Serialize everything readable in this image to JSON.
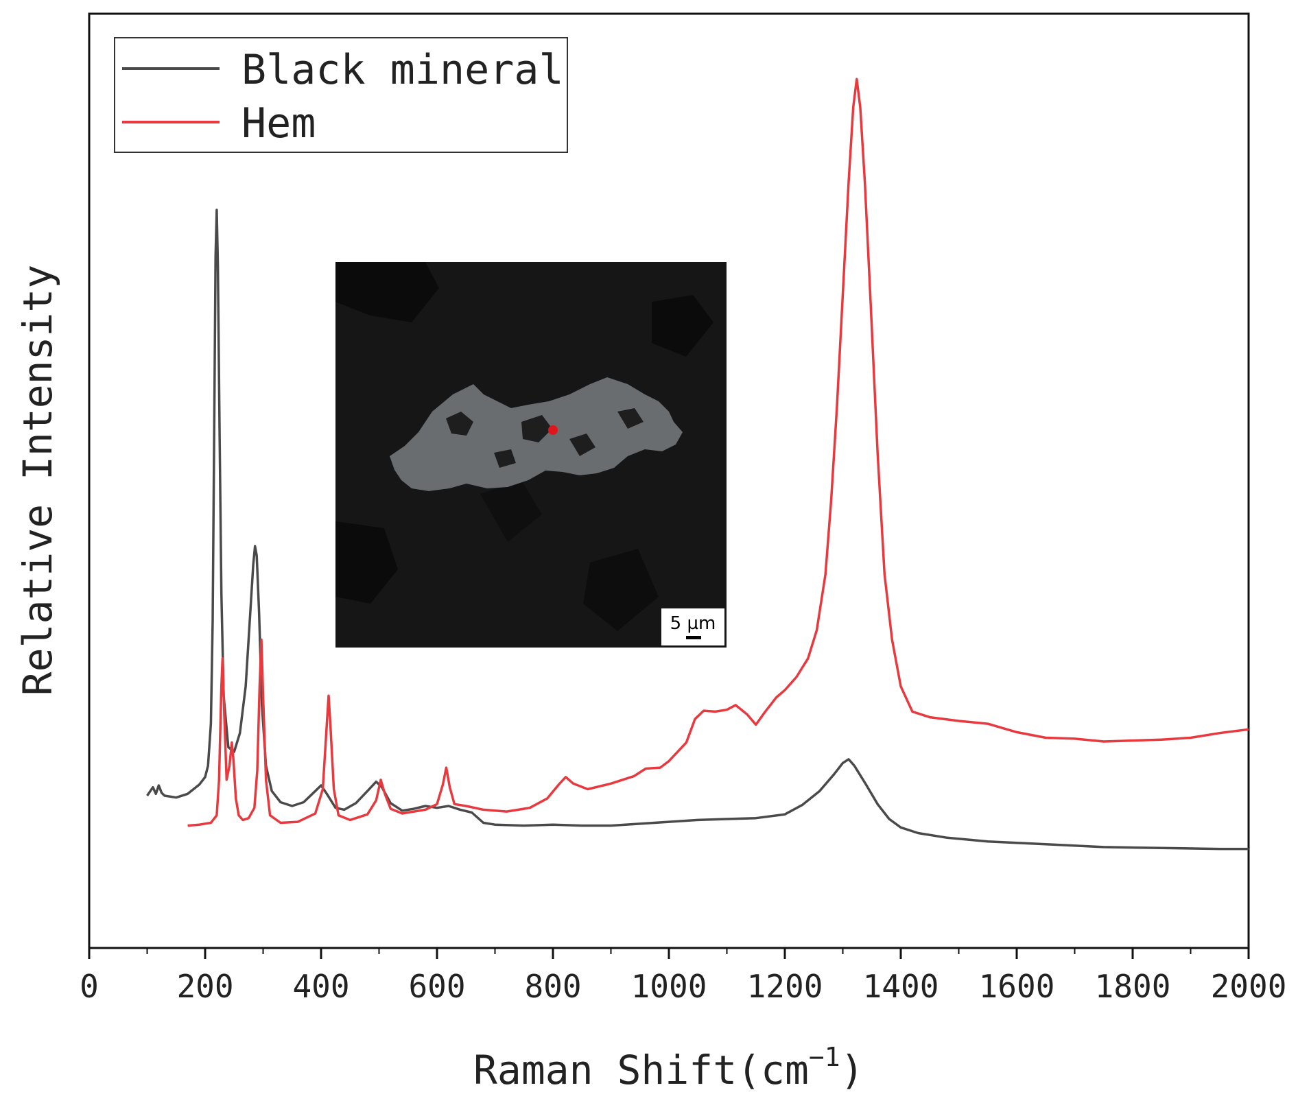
{
  "chart_data": {
    "type": "line",
    "xlabel": "Raman Shift(cm",
    "xlabel_superscript": "−1",
    "xlabel_suffix": ")",
    "ylabel": "Relative Intensity",
    "xlim": [
      0,
      2000
    ],
    "ylim": [
      0,
      100
    ],
    "xticks": [
      "0",
      "200",
      "400",
      "600",
      "800",
      "1000",
      "1200",
      "1400",
      "1600",
      "1800",
      "2000"
    ],
    "yticks_shown": false,
    "grid": false,
    "legend_position": "top-left",
    "series": [
      {
        "name": "Black mineral",
        "color": "#4a4a4a",
        "points": [
          [
            100,
            16.3
          ],
          [
            110,
            17.2
          ],
          [
            115,
            16.5
          ],
          [
            120,
            17.4
          ],
          [
            125,
            16.6
          ],
          [
            130,
            16.3
          ],
          [
            150,
            16.1
          ],
          [
            170,
            16.5
          ],
          [
            190,
            17.5
          ],
          [
            200,
            18.3
          ],
          [
            205,
            19.5
          ],
          [
            210,
            24
          ],
          [
            213,
            35
          ],
          [
            216,
            58
          ],
          [
            218,
            74
          ],
          [
            220,
            79
          ],
          [
            222,
            73
          ],
          [
            225,
            55
          ],
          [
            228,
            38
          ],
          [
            232,
            27
          ],
          [
            240,
            21.5
          ],
          [
            250,
            21
          ],
          [
            260,
            23
          ],
          [
            270,
            28
          ],
          [
            278,
            36
          ],
          [
            283,
            41
          ],
          [
            286,
            43
          ],
          [
            289,
            42
          ],
          [
            293,
            36
          ],
          [
            298,
            26
          ],
          [
            305,
            19.5
          ],
          [
            315,
            16.8
          ],
          [
            330,
            15.6
          ],
          [
            350,
            15.2
          ],
          [
            370,
            15.6
          ],
          [
            390,
            16.8
          ],
          [
            400,
            17.4
          ],
          [
            410,
            16.5
          ],
          [
            425,
            15
          ],
          [
            440,
            14.8
          ],
          [
            460,
            15.5
          ],
          [
            480,
            16.8
          ],
          [
            495,
            17.8
          ],
          [
            505,
            17.2
          ],
          [
            520,
            15.5
          ],
          [
            540,
            14.7
          ],
          [
            560,
            14.9
          ],
          [
            580,
            15.2
          ],
          [
            600,
            15
          ],
          [
            620,
            15.2
          ],
          [
            640,
            14.8
          ],
          [
            660,
            14.5
          ],
          [
            680,
            13.4
          ],
          [
            700,
            13.2
          ],
          [
            750,
            13.1
          ],
          [
            800,
            13.2
          ],
          [
            850,
            13.1
          ],
          [
            900,
            13.1
          ],
          [
            950,
            13.3
          ],
          [
            1000,
            13.5
          ],
          [
            1050,
            13.7
          ],
          [
            1100,
            13.8
          ],
          [
            1150,
            13.9
          ],
          [
            1200,
            14.3
          ],
          [
            1230,
            15.3
          ],
          [
            1260,
            16.8
          ],
          [
            1285,
            18.6
          ],
          [
            1300,
            19.8
          ],
          [
            1310,
            20.2
          ],
          [
            1320,
            19.5
          ],
          [
            1340,
            17.5
          ],
          [
            1360,
            15.4
          ],
          [
            1380,
            13.8
          ],
          [
            1400,
            12.9
          ],
          [
            1430,
            12.3
          ],
          [
            1480,
            11.8
          ],
          [
            1550,
            11.4
          ],
          [
            1650,
            11.1
          ],
          [
            1750,
            10.8
          ],
          [
            1850,
            10.7
          ],
          [
            1950,
            10.6
          ],
          [
            2000,
            10.6
          ]
        ]
      },
      {
        "name": "Hem",
        "color": "#e8393e",
        "points": [
          [
            170,
            13.1
          ],
          [
            190,
            13.2
          ],
          [
            210,
            13.4
          ],
          [
            220,
            14.2
          ],
          [
            224,
            18
          ],
          [
            228,
            28
          ],
          [
            230,
            31
          ],
          [
            233,
            25
          ],
          [
            237,
            18
          ],
          [
            242,
            19.5
          ],
          [
            246,
            22
          ],
          [
            249,
            20
          ],
          [
            253,
            16
          ],
          [
            258,
            14.2
          ],
          [
            265,
            13.7
          ],
          [
            275,
            13.9
          ],
          [
            285,
            15
          ],
          [
            290,
            19
          ],
          [
            294,
            28
          ],
          [
            297,
            33
          ],
          [
            300,
            27
          ],
          [
            305,
            18
          ],
          [
            312,
            14.2
          ],
          [
            330,
            13.4
          ],
          [
            360,
            13.5
          ],
          [
            390,
            14.4
          ],
          [
            403,
            17
          ],
          [
            410,
            24
          ],
          [
            413,
            27
          ],
          [
            416,
            24
          ],
          [
            422,
            17
          ],
          [
            430,
            14.2
          ],
          [
            450,
            13.7
          ],
          [
            480,
            14.3
          ],
          [
            495,
            15.8
          ],
          [
            503,
            18
          ],
          [
            510,
            16.5
          ],
          [
            520,
            14.9
          ],
          [
            540,
            14.4
          ],
          [
            560,
            14.6
          ],
          [
            580,
            14.8
          ],
          [
            600,
            15.4
          ],
          [
            610,
            17.5
          ],
          [
            616,
            19.3
          ],
          [
            622,
            17.2
          ],
          [
            630,
            15.4
          ],
          [
            650,
            15.2
          ],
          [
            680,
            14.8
          ],
          [
            720,
            14.6
          ],
          [
            760,
            15
          ],
          [
            790,
            16
          ],
          [
            810,
            17.5
          ],
          [
            822,
            18.3
          ],
          [
            835,
            17.6
          ],
          [
            860,
            17
          ],
          [
            900,
            17.6
          ],
          [
            940,
            18.4
          ],
          [
            960,
            19.2
          ],
          [
            985,
            19.3
          ],
          [
            1000,
            20
          ],
          [
            1030,
            22
          ],
          [
            1045,
            24.5
          ],
          [
            1060,
            25.4
          ],
          [
            1080,
            25.3
          ],
          [
            1100,
            25.5
          ],
          [
            1115,
            26
          ],
          [
            1135,
            25
          ],
          [
            1150,
            23.9
          ],
          [
            1165,
            25.2
          ],
          [
            1185,
            26.8
          ],
          [
            1200,
            27.6
          ],
          [
            1220,
            29
          ],
          [
            1240,
            31
          ],
          [
            1255,
            34
          ],
          [
            1270,
            40
          ],
          [
            1280,
            48
          ],
          [
            1290,
            58
          ],
          [
            1300,
            70
          ],
          [
            1310,
            82
          ],
          [
            1318,
            90
          ],
          [
            1324,
            93
          ],
          [
            1330,
            90
          ],
          [
            1338,
            82
          ],
          [
            1348,
            69
          ],
          [
            1360,
            53
          ],
          [
            1372,
            40
          ],
          [
            1385,
            33
          ],
          [
            1400,
            28
          ],
          [
            1420,
            25.3
          ],
          [
            1450,
            24.7
          ],
          [
            1500,
            24.3
          ],
          [
            1550,
            24
          ],
          [
            1600,
            23.1
          ],
          [
            1650,
            22.5
          ],
          [
            1700,
            22.4
          ],
          [
            1750,
            22.1
          ],
          [
            1800,
            22.2
          ],
          [
            1850,
            22.3
          ],
          [
            1900,
            22.5
          ],
          [
            1950,
            23
          ],
          [
            2000,
            23.4
          ]
        ]
      }
    ]
  },
  "inset": {
    "scale_bar_label": "5 µm",
    "background_color": "#161616",
    "grain_color": "#6a6d70",
    "marker_color": "#e0151b"
  }
}
